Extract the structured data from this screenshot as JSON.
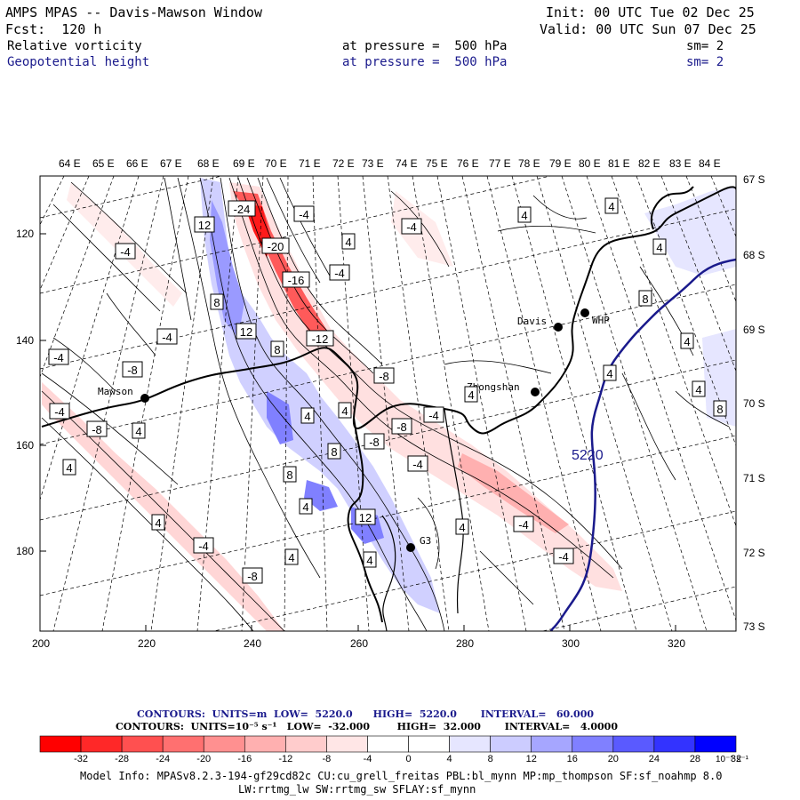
{
  "header": {
    "title": "AMPS MPAS -- Davis-Mawson Window",
    "init": "Init: 00 UTC Tue 02 Dec 25",
    "fcst": "Fcst:  120 h",
    "valid": "Valid: 00 UTC Sun 07 Dec 25",
    "field1": "Relative vorticity",
    "field2": "Geopotential height",
    "pressure1": "at pressure =  500 hPa",
    "pressure2": "at pressure =  500 hPa",
    "sm1": "sm= 2",
    "sm2": "sm= 2"
  },
  "axes": {
    "top_lon_labels": [
      "64 E",
      "65 E",
      "66 E",
      "67 E",
      "68 E",
      "69 E",
      "70 E",
      "71 E",
      "72 E",
      "73 E",
      "74 E",
      "75 E",
      "76 E",
      "77 E",
      "78 E",
      "79 E",
      "80 E",
      "81 E",
      "82 E",
      "83 E",
      "84 E"
    ],
    "right_lat_labels": [
      "67 S",
      "68 S",
      "69 S",
      "70 S",
      "71 S",
      "72 S",
      "73 S"
    ],
    "bottom_x_ticks": [
      "200",
      "220",
      "240",
      "260",
      "280",
      "300",
      "320"
    ],
    "left_y_ticks": [
      "120",
      "140",
      "160",
      "180"
    ]
  },
  "stations": [
    {
      "name": "Mawson"
    },
    {
      "name": "Davis"
    },
    {
      "name": "WHP"
    },
    {
      "name": "Zhongshan"
    },
    {
      "name": "G3"
    }
  ],
  "contour_labels": [
    "12",
    "-24",
    "-20",
    "-16",
    "-12",
    "-4",
    "4",
    "-4",
    "-4",
    "4",
    "4",
    "4",
    "-4",
    "8",
    "12",
    "8",
    "-4",
    "-8",
    "-4",
    "-8",
    "-4",
    "4",
    "4",
    "8",
    "4",
    "8",
    "-8",
    "-4",
    "-4",
    "-8",
    "4",
    "4",
    "12",
    "4",
    "4",
    "-4",
    "-8",
    "-4",
    "4",
    "-4",
    "4",
    "4",
    "-8",
    "4",
    "8",
    "4",
    "4",
    "8"
  ],
  "height_label": "5220",
  "contour_info": {
    "line1": "CONTOURS:  UNITS=m  LOW=  5220.0      HIGH=  5220.0       INTERVAL=   60.000",
    "line2": "CONTOURS:  UNITS=10⁻⁵ s⁻¹   LOW=  -32.000        HIGH=  32.000       INTERVAL=   4.0000"
  },
  "colorbar": {
    "ticks": [
      "-32",
      "-28",
      "-24",
      "-20",
      "-16",
      "-12",
      "-8",
      "-4",
      "0",
      "4",
      "8",
      "12",
      "16",
      "20",
      "24",
      "28",
      "32"
    ],
    "unit": "10⁻⁵ s⁻¹",
    "colors": [
      "#ff0000",
      "#ff2828",
      "#ff5050",
      "#ff7070",
      "#ff9090",
      "#ffb0b0",
      "#ffcccc",
      "#ffe6e6",
      "#ffffff",
      "#ffffff",
      "#e6e6ff",
      "#ccccff",
      "#a6a6ff",
      "#8080ff",
      "#5a5aff",
      "#3333ff",
      "#0000ff"
    ]
  },
  "model_info": {
    "line1": "Model Info: MPASv8.2.3-194-gf29cd82c CU:cu_grell_freitas PBL:bl_mynn MP:mp_thompson SF:sf_noahmp 8.0",
    "line2": "LW:rrtmg_lw SW:rrtmg_sw SFLAY:sf_mynn"
  }
}
